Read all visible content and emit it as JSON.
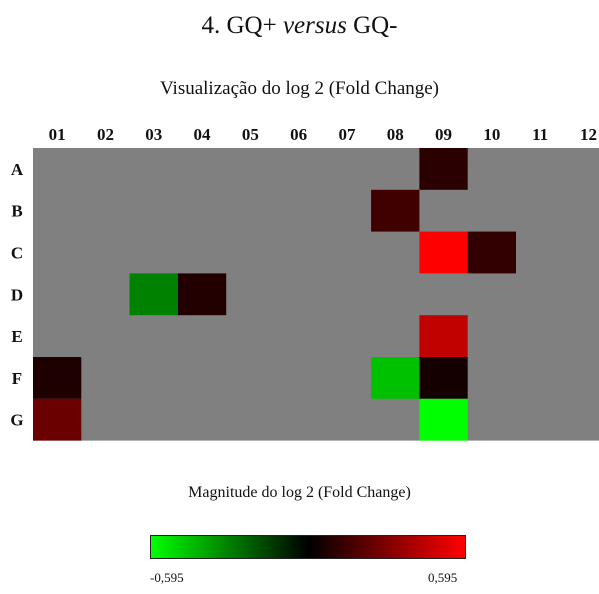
{
  "chart_data": {
    "type": "heatmap",
    "title_prefix": "4. GQ+ ",
    "title_italic": "versus",
    "title_suffix": " GQ-",
    "subtitle": "Visualização do log 2 (Fold Change)",
    "columns": [
      "01",
      "02",
      "03",
      "04",
      "05",
      "06",
      "07",
      "08",
      "09",
      "10",
      "11",
      "12"
    ],
    "rows": [
      "A",
      "B",
      "C",
      "D",
      "E",
      "F",
      "G"
    ],
    "neutral_color": "#808080",
    "color_low": "#00ff00",
    "color_mid": "#000000",
    "color_high": "#ff0000",
    "value_range": [
      -0.595,
      0.595
    ],
    "cells": [
      {
        "row": "A",
        "col": "09",
        "value": 0.1
      },
      {
        "row": "B",
        "col": "08",
        "value": 0.15
      },
      {
        "row": "C",
        "col": "09",
        "value": 0.595
      },
      {
        "row": "C",
        "col": "10",
        "value": 0.12
      },
      {
        "row": "D",
        "col": "03",
        "value": -0.3
      },
      {
        "row": "D",
        "col": "04",
        "value": 0.08
      },
      {
        "row": "E",
        "col": "09",
        "value": 0.45
      },
      {
        "row": "F",
        "col": "01",
        "value": 0.07
      },
      {
        "row": "F",
        "col": "08",
        "value": -0.45
      },
      {
        "row": "F",
        "col": "09",
        "value": 0.05
      },
      {
        "row": "G",
        "col": "01",
        "value": 0.25
      },
      {
        "row": "G",
        "col": "09",
        "value": -0.595
      }
    ],
    "legend": {
      "title": "Magnitude do log 2 (Fold Change)",
      "min_label": "-0,595",
      "max_label": "0,595"
    }
  }
}
